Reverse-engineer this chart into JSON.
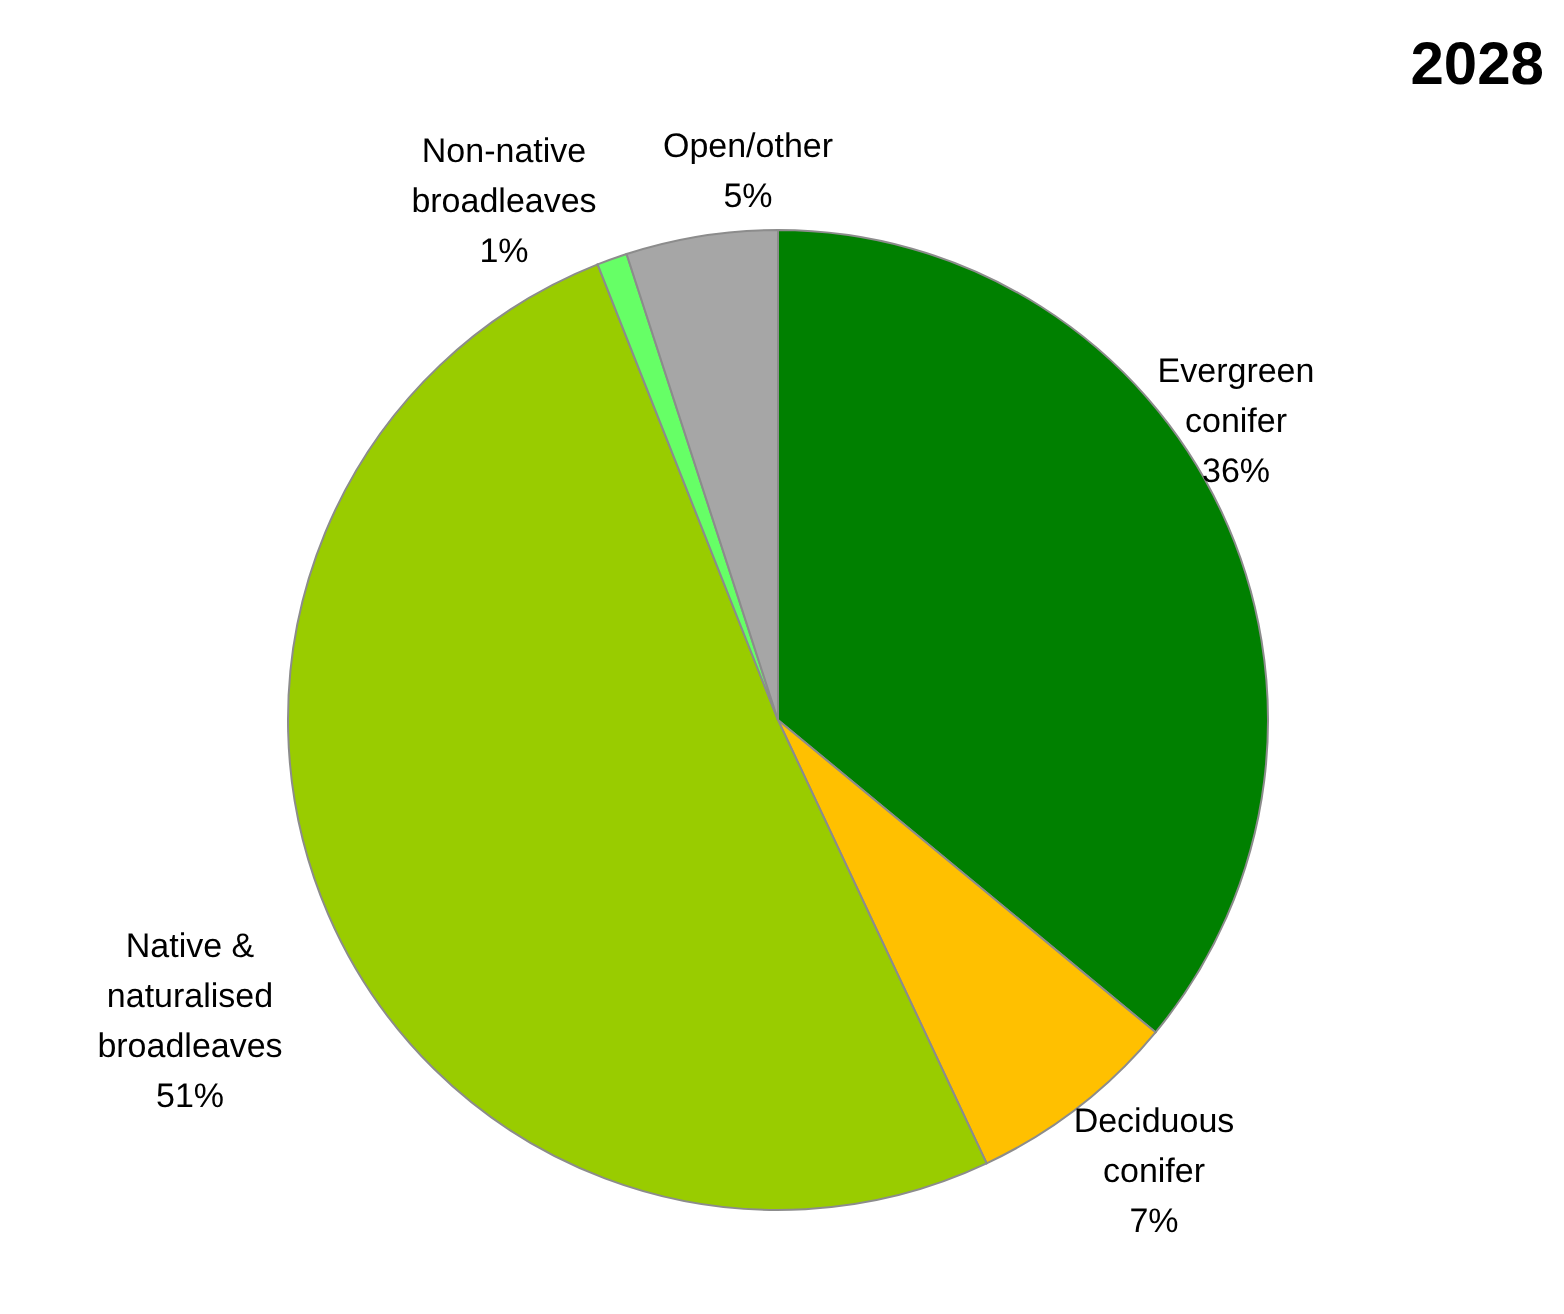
{
  "chart_data": {
    "type": "pie",
    "title": "2028",
    "categories": [
      "Evergreen conifer",
      "Deciduous conifer",
      "Native & naturalised broadleaves",
      "Non-native broadleaves",
      "Open/other"
    ],
    "values": [
      36,
      7,
      51,
      1,
      5
    ],
    "colors": [
      "#008000",
      "#ffc000",
      "#99cc00",
      "#66ff66",
      "#a6a6a6"
    ],
    "value_labels": [
      "36%",
      "7%",
      "51%",
      "1%",
      "5%"
    ]
  }
}
